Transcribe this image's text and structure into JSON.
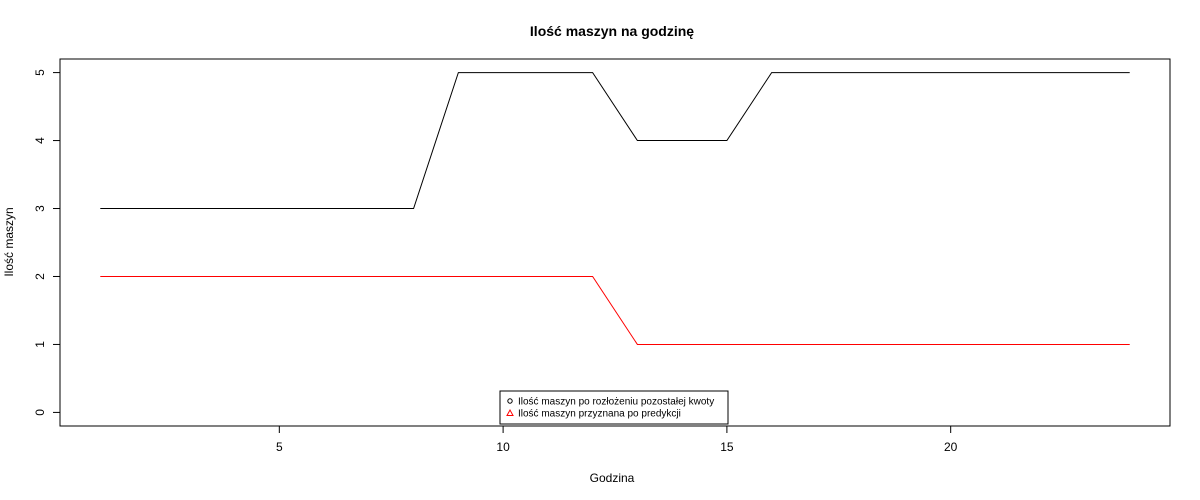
{
  "chart_data": {
    "type": "line",
    "title": "Ilość maszyn na godzinę",
    "xlabel": "Godzina",
    "ylabel": "Ilość maszyn",
    "xlim": [
      0.1,
      24.9
    ],
    "ylim": [
      -0.2,
      5.2
    ],
    "x_ticks": [
      5,
      10,
      15,
      20
    ],
    "y_ticks": [
      0,
      1,
      2,
      3,
      4,
      5
    ],
    "grid": false,
    "legend_position": "bottom-center",
    "x": [
      1,
      2,
      3,
      4,
      5,
      6,
      7,
      8,
      9,
      10,
      11,
      12,
      13,
      14,
      15,
      16,
      17,
      18,
      19,
      20,
      21,
      22,
      23,
      24
    ],
    "series": [
      {
        "name": "Ilość maszyn po rozłożeniu pozostałej kwoty",
        "color": "#000000",
        "marker": "circle",
        "values": [
          3,
          3,
          3,
          3,
          3,
          3,
          3,
          3,
          5,
          5,
          5,
          5,
          4,
          4,
          4,
          5,
          5,
          5,
          5,
          5,
          5,
          5,
          5,
          5
        ]
      },
      {
        "name": "Ilość maszyn przyznana po predykcji",
        "color": "#ff0000",
        "marker": "triangle",
        "values": [
          2,
          2,
          2,
          2,
          2,
          2,
          2,
          2,
          2,
          2,
          2,
          2,
          1,
          1,
          1,
          1,
          1,
          1,
          1,
          1,
          1,
          1,
          1,
          1
        ]
      }
    ]
  }
}
